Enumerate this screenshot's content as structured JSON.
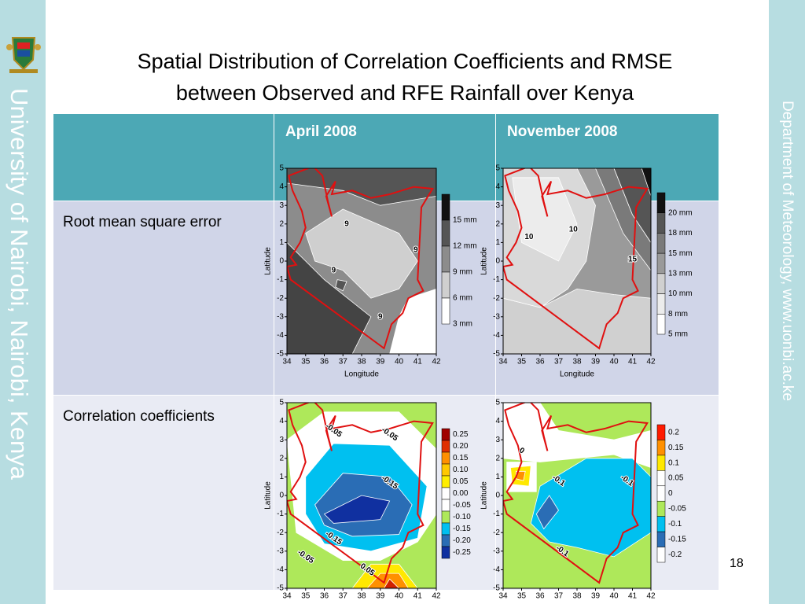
{
  "sidebar_left": "University of Nairobi, Nairobi, Kenya",
  "sidebar_right": "Department of Meteorology, www.uonbi.ac.ke",
  "title": [
    "Spatial Distribution of Correlation Coefficients and RMSE",
    "between Observed and RFE Rainfall over Kenya"
  ],
  "table": {
    "columns": [
      "April 2008",
      "November 2008"
    ],
    "rows": [
      "Root mean square error",
      "Correlation coefficients"
    ]
  },
  "map_axes": {
    "xticks": [
      "34",
      "35",
      "36",
      "37",
      "38",
      "39",
      "40",
      "41",
      "42"
    ],
    "yticks": [
      "5",
      "4",
      "3",
      "2",
      "1",
      "0",
      "-1",
      "-2",
      "-3",
      "-4",
      "-5"
    ],
    "xlabel": "Longitude",
    "ylabel": "Latitude"
  },
  "maps": [
    {
      "legend": [
        {
          "label": "15 mm",
          "color": "#111111"
        },
        {
          "label": "12 mm",
          "color": "#555555"
        },
        {
          "label": "9 mm",
          "color": "#8c8c8c"
        },
        {
          "label": "6 mm",
          "color": "#cfcfcf"
        },
        {
          "label": "3 mm",
          "color": "#ffffff"
        }
      ],
      "contour_labels": [
        "9",
        "9",
        "9",
        "9"
      ]
    },
    {
      "legend": [
        {
          "label": "20 mm",
          "color": "#111111"
        },
        {
          "label": "18 mm",
          "color": "#555555"
        },
        {
          "label": "15 mm",
          "color": "#7a7a7a"
        },
        {
          "label": "13 mm",
          "color": "#9a9a9a"
        },
        {
          "label": "10 mm",
          "color": "#d0d0d0"
        },
        {
          "label": "8 mm",
          "color": "#ececec"
        },
        {
          "label": "5 mm",
          "color": "#ffffff"
        }
      ],
      "contour_labels": [
        "10",
        "10",
        "15"
      ]
    },
    {
      "legend": [
        {
          "label": "0.25",
          "color": "#a00000"
        },
        {
          "label": "0.20",
          "color": "#e03000"
        },
        {
          "label": "0.15",
          "color": "#ff9000"
        },
        {
          "label": "0.10",
          "color": "#ffc800"
        },
        {
          "label": "0.05",
          "color": "#ffee00"
        },
        {
          "label": "0.00",
          "color": "#ffffff"
        },
        {
          "label": "-0.05",
          "color": "#ffffff"
        },
        {
          "label": "-0.10",
          "color": "#aee85a"
        },
        {
          "label": "-0.15",
          "color": "#00c0f0"
        },
        {
          "label": "-0.20",
          "color": "#2a6db5"
        },
        {
          "label": "-0.25",
          "color": "#1030a0"
        }
      ],
      "contour_labels": [
        "-0.05",
        "-0.05",
        "-0.15",
        "-0.15",
        "-0.05",
        "0.05"
      ]
    },
    {
      "legend": [
        {
          "label": "0.2",
          "color": "#ff1a00"
        },
        {
          "label": "0.15",
          "color": "#ff9000"
        },
        {
          "label": "0.1",
          "color": "#ffe800"
        },
        {
          "label": "0.05",
          "color": "#ffffff"
        },
        {
          "label": "0",
          "color": "#ffffff"
        },
        {
          "label": "-0.05",
          "color": "#aee85a"
        },
        {
          "label": "-0.1",
          "color": "#00c0f0"
        },
        {
          "label": "-0.15",
          "color": "#2a6db5"
        },
        {
          "label": "-0.2",
          "color": "#ffffff"
        }
      ],
      "contour_labels": [
        "0",
        "-0.1",
        "-0.1",
        "-0.1"
      ]
    }
  ],
  "page_number": "18"
}
